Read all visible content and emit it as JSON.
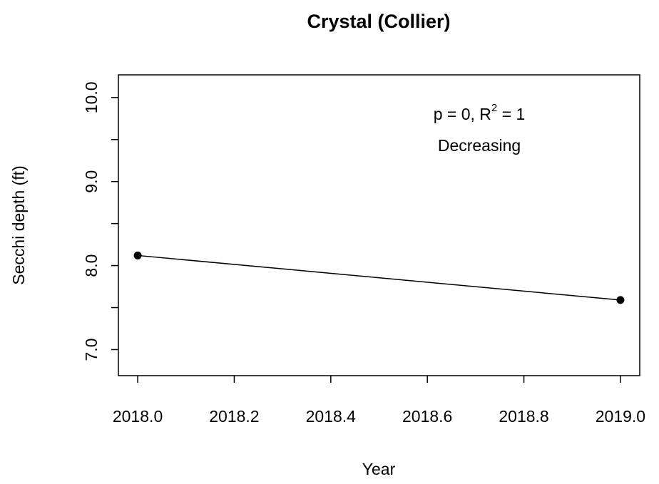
{
  "chart_data": {
    "type": "line",
    "title": "Crystal (Collier)",
    "x_label": "Year",
    "y_label": "Secchi depth (ft)",
    "x": [
      2018,
      2019
    ],
    "series": [
      {
        "color": "#000000",
        "values": [
          8.12,
          7.59
        ]
      }
    ],
    "xlim": [
      2017.96,
      2019.04
    ],
    "xticks": [
      {
        "value": 2018,
        "label": "2018.0"
      },
      2018.2,
      2018.4,
      2018.6,
      2018.8,
      {
        "value": 2019,
        "label": "2019.0"
      }
    ],
    "ylim": [
      6.69,
      10.27
    ],
    "yticks": [
      {
        "value": 7,
        "label": "7.0"
      },
      {
        "value": 7.5,
        "label": null
      },
      {
        "value": 8,
        "label": "8.0"
      },
      {
        "value": 8.5,
        "label": null
      },
      {
        "value": 9,
        "label": "9.0"
      },
      {
        "value": 9.5,
        "label": null
      },
      {
        "value": 10,
        "label": "10.0"
      }
    ],
    "annotation": {
      "line1": [
        "p = 0, R",
        "2",
        " = 1"
      ],
      "line2": "Decreasing"
    }
  }
}
